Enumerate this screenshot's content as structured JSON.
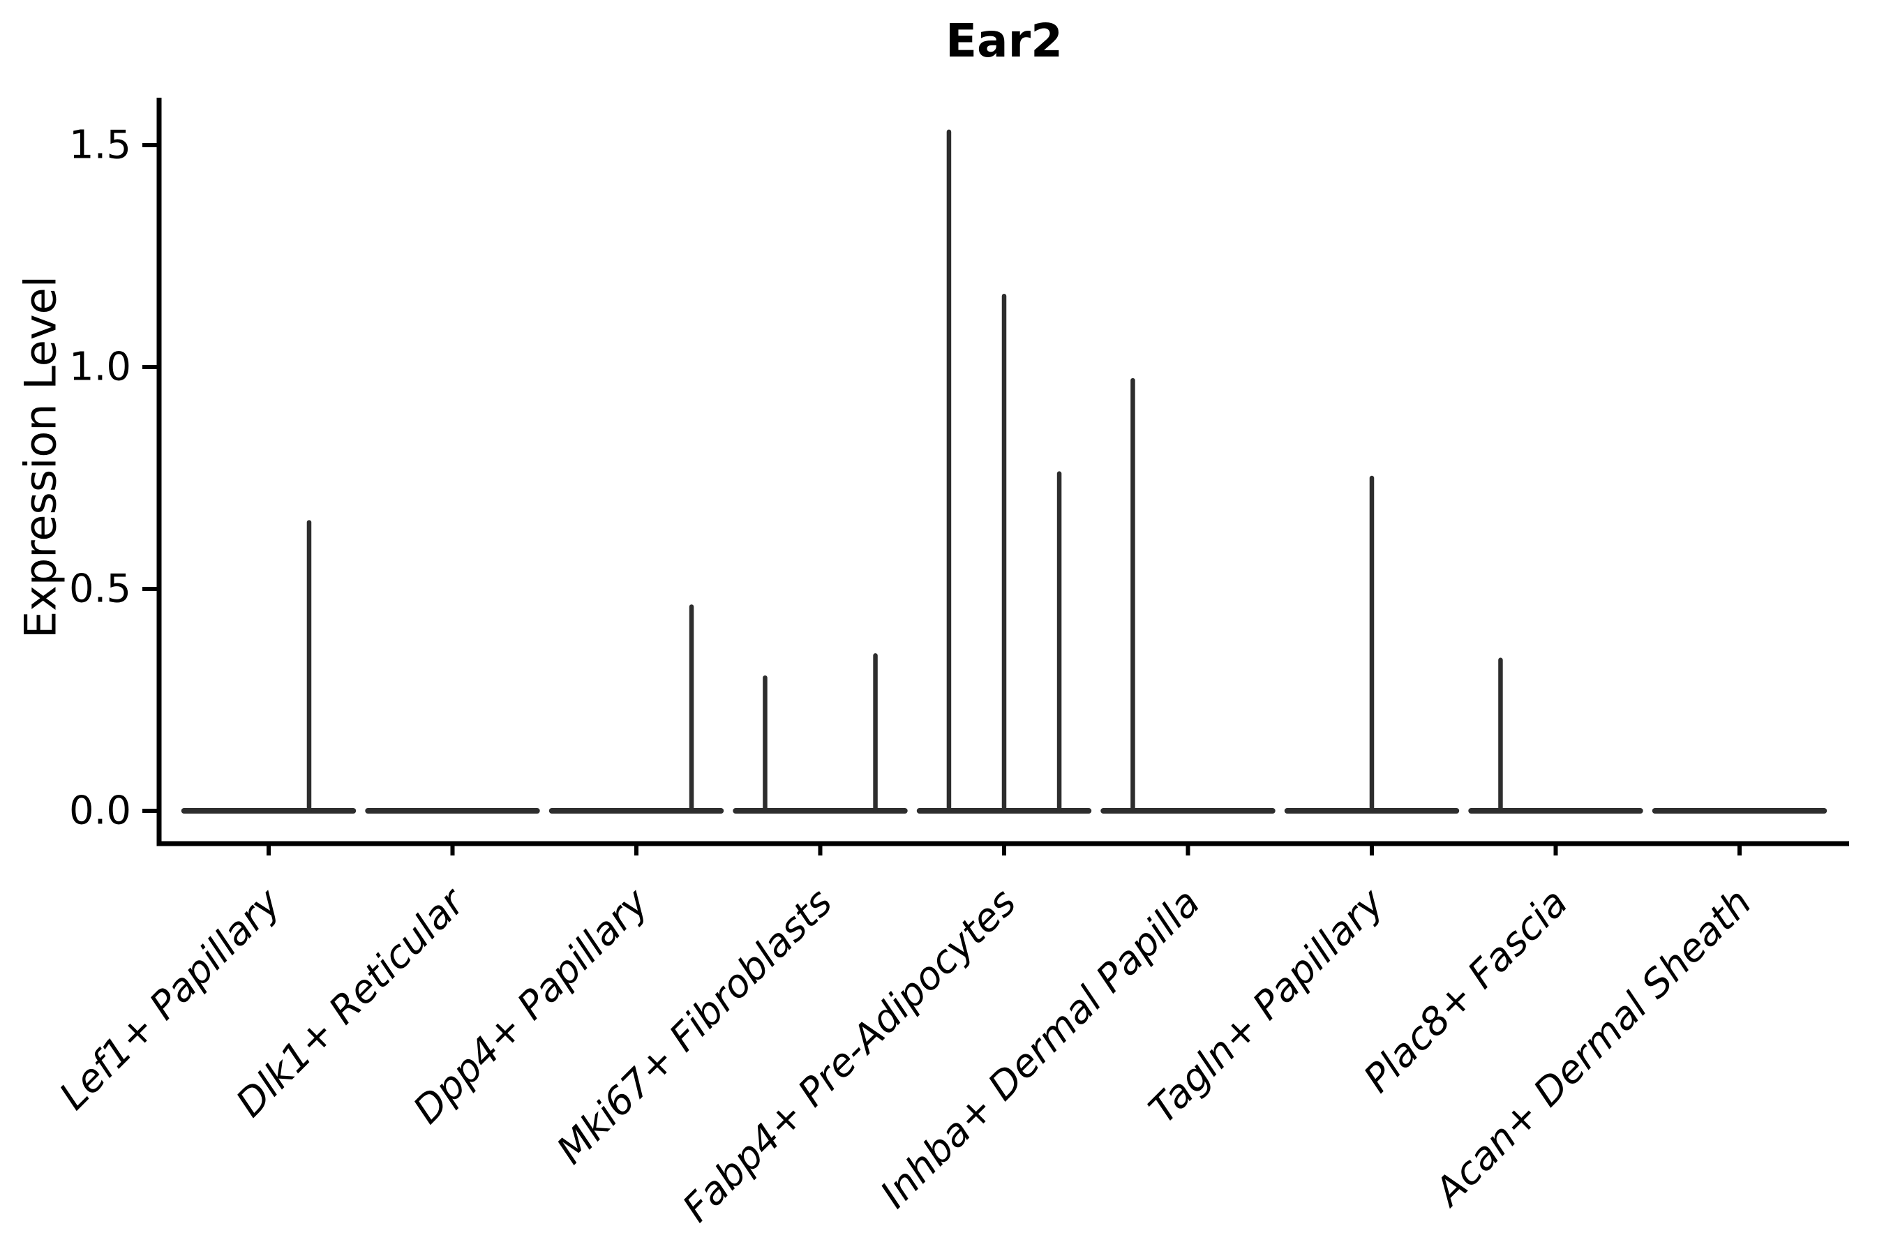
{
  "title": "Ear2",
  "chart_data": {
    "type": "violin",
    "title": "Ear2",
    "xlabel": "",
    "ylabel": "Expression Level",
    "ylim": [
      -0.08,
      1.61
    ],
    "yticks": [
      0.0,
      0.5,
      1.0,
      1.5
    ],
    "ytick_labels": [
      "0.0",
      "0.5",
      "1.0",
      "1.5"
    ],
    "grid": false,
    "legend": "none",
    "violin_color": "#2d2d2d",
    "axis_color": "#000000",
    "categories": [
      "Lef1+ Papillary",
      "Dlk1+ Reticular",
      "Dpp4+ Papillary",
      "Mki67+ Fibroblasts",
      "Fabp4+ Pre-Adipocytes",
      "Inhba+ Dermal Papilla",
      "Tagln+ Papillary",
      "Plac8+ Fascia",
      "Acan+ Dermal Sheath"
    ],
    "violins": [
      {
        "category": "Lef1+ Papillary",
        "baseline_value": 0.0,
        "baseline_halfwidth_frac": 0.46,
        "spikes": [
          {
            "offset_frac": 0.22,
            "value": 0.65
          }
        ]
      },
      {
        "category": "Dlk1+ Reticular",
        "baseline_value": 0.0,
        "baseline_halfwidth_frac": 0.46,
        "spikes": []
      },
      {
        "category": "Dpp4+ Papillary",
        "baseline_value": 0.0,
        "baseline_halfwidth_frac": 0.46,
        "spikes": [
          {
            "offset_frac": 0.3,
            "value": 0.46
          }
        ]
      },
      {
        "category": "Mki67+ Fibroblasts",
        "baseline_value": 0.0,
        "baseline_halfwidth_frac": 0.46,
        "spikes": [
          {
            "offset_frac": -0.3,
            "value": 0.3
          },
          {
            "offset_frac": 0.3,
            "value": 0.35
          }
        ]
      },
      {
        "category": "Fabp4+ Pre-Adipocytes",
        "baseline_value": 0.0,
        "baseline_halfwidth_frac": 0.46,
        "spikes": [
          {
            "offset_frac": -0.3,
            "value": 1.53
          },
          {
            "offset_frac": 0.0,
            "value": 1.16
          },
          {
            "offset_frac": 0.3,
            "value": 0.76
          }
        ]
      },
      {
        "category": "Inhba+ Dermal Papilla",
        "baseline_value": 0.0,
        "baseline_halfwidth_frac": 0.46,
        "spikes": [
          {
            "offset_frac": -0.3,
            "value": 0.97
          }
        ]
      },
      {
        "category": "Tagln+ Papillary",
        "baseline_value": 0.0,
        "baseline_halfwidth_frac": 0.46,
        "spikes": [
          {
            "offset_frac": 0.0,
            "value": 0.75
          }
        ]
      },
      {
        "category": "Plac8+ Fascia",
        "baseline_value": 0.0,
        "baseline_halfwidth_frac": 0.46,
        "spikes": [
          {
            "offset_frac": -0.3,
            "value": 0.34
          }
        ]
      },
      {
        "category": "Acan+ Dermal Sheath",
        "baseline_value": 0.0,
        "baseline_halfwidth_frac": 0.46,
        "spikes": []
      }
    ]
  }
}
